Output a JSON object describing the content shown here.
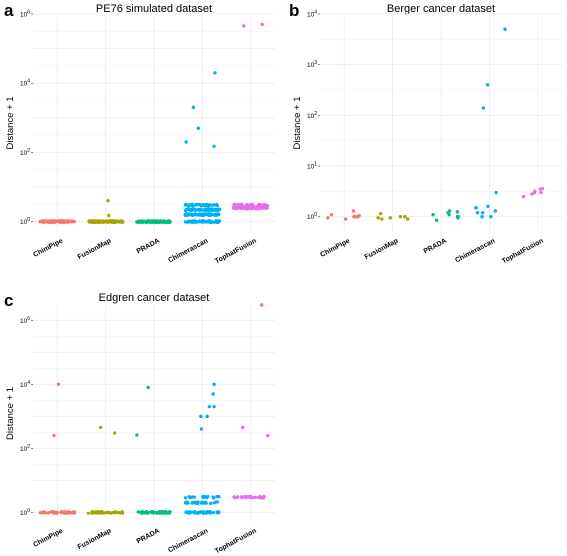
{
  "chart_data": [
    {
      "panel": "a",
      "type": "scatter",
      "title": "PE76 simulated dataset",
      "ylabel": "Distance + 1",
      "yscale": "log10",
      "ylim": [
        0.5,
        1000000
      ],
      "yticks": [
        {
          "exp": 0
        },
        {
          "exp": 2
        },
        {
          "exp": 4
        },
        {
          "exp": 6
        }
      ],
      "categories": [
        "ChimPipe",
        "FusionMap",
        "PRADA",
        "Chimerascan",
        "TophatFusion"
      ],
      "colors": [
        "#f8766d",
        "#a3a500",
        "#00bf7d",
        "#00b0f6",
        "#e76bf3"
      ],
      "series": [
        {
          "category": "ChimPipe",
          "clusters": [
            {
              "y": 1,
              "n": 90
            }
          ]
        },
        {
          "category": "FusionMap",
          "clusters": [
            {
              "y": 1,
              "n": 90
            }
          ],
          "points": [
            1.5,
            4
          ]
        },
        {
          "category": "PRADA",
          "clusters": [
            {
              "y": 1,
              "n": 90
            }
          ]
        },
        {
          "category": "Chimerascan",
          "clusters": [
            {
              "y": 1,
              "n": 70
            },
            {
              "y": 1.6,
              "n": 70
            },
            {
              "y": 2.2,
              "n": 60
            },
            {
              "y": 3,
              "n": 50
            }
          ],
          "points": [
            2000,
            150,
            500,
            20000,
            200
          ]
        },
        {
          "category": "TophatFusion",
          "clusters": [
            {
              "y": 2.5,
              "n": 80
            },
            {
              "y": 3,
              "n": 40
            }
          ],
          "points": [
            500000,
            450000
          ]
        }
      ]
    },
    {
      "panel": "b",
      "type": "scatter",
      "title": "Berger cancer dataset",
      "ylabel": "Distance + 1",
      "yscale": "log10",
      "ylim": [
        0.5,
        10000
      ],
      "yticks": [
        {
          "exp": 0
        },
        {
          "exp": 1
        },
        {
          "exp": 2
        },
        {
          "exp": 3
        },
        {
          "exp": 4
        }
      ],
      "categories": [
        "ChimPipe",
        "FusionMap",
        "PRADA",
        "Chimerascan",
        "TophatFusion"
      ],
      "colors": [
        "#f8766d",
        "#a3a500",
        "#00bf7d",
        "#00b0f6",
        "#e76bf3"
      ],
      "series": [
        {
          "category": "ChimPipe",
          "points": [
            1,
            1.1,
            0.95,
            1.3,
            1.05,
            0.9,
            1.0,
            1.0
          ]
        },
        {
          "category": "FusionMap",
          "points": [
            0.95,
            0.9,
            1.15,
            0.9,
            1.0,
            1.0,
            0.95
          ]
        },
        {
          "category": "PRADA",
          "points": [
            0.95,
            0.85,
            1.1,
            1.0,
            1.25,
            1.1,
            1.0,
            1.3,
            1.2
          ]
        },
        {
          "category": "Chimerascan",
          "points": [
            140,
            1.2,
            5000,
            1.5,
            1.0,
            1.2,
            1.6,
            400,
            1.0,
            1.3,
            1.5,
            3.0
          ]
        },
        {
          "category": "TophatFusion",
          "points": [
            2.8,
            3.0,
            3.2,
            2.5,
            3.6,
            3.0,
            3.5
          ]
        }
      ]
    },
    {
      "panel": "c",
      "type": "scatter",
      "title": "Edgren cancer dataset",
      "ylabel": "Distance + 1",
      "yscale": "log10",
      "ylim": [
        0.5,
        3000000
      ],
      "yticks": [
        {
          "exp": 0
        },
        {
          "exp": 2
        },
        {
          "exp": 4
        },
        {
          "exp": 6
        }
      ],
      "categories": [
        "ChimPipe",
        "FusionMap",
        "PRADA",
        "Chimerascan",
        "TophatFusion"
      ],
      "colors": [
        "#f8766d",
        "#a3a500",
        "#00bf7d",
        "#00b0f6",
        "#e76bf3"
      ],
      "series": [
        {
          "category": "ChimPipe",
          "clusters": [
            {
              "y": 1,
              "n": 60
            }
          ],
          "points": [
            10000,
            250
          ]
        },
        {
          "category": "FusionMap",
          "clusters": [
            {
              "y": 1,
              "n": 50
            }
          ],
          "points": [
            300,
            450
          ]
        },
        {
          "category": "PRADA",
          "clusters": [
            {
              "y": 1,
              "n": 50
            }
          ],
          "points": [
            8000,
            260
          ]
        },
        {
          "category": "Chimerascan",
          "clusters": [
            {
              "y": 1,
              "n": 40
            },
            {
              "y": 2,
              "n": 30
            },
            {
              "y": 3,
              "n": 20
            }
          ],
          "points": [
            10000,
            2000,
            1000,
            5000,
            2000,
            400,
            1000
          ]
        },
        {
          "category": "TophatFusion",
          "clusters": [
            {
              "y": 3,
              "n": 30
            }
          ],
          "points": [
            3000000,
            250,
            450
          ]
        }
      ]
    }
  ]
}
